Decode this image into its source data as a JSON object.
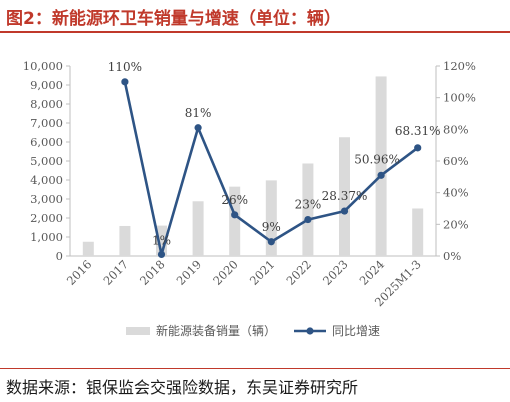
{
  "figure": {
    "title": "图2：新能源环卫车销量与增速（单位：辆）",
    "source": "数据来源：银保监会交强险数据，东吴证券研究所"
  },
  "colors": {
    "bar": "#dadada",
    "line": "#2e5485",
    "axis": "#bfbfbf",
    "tick_text": "#595959",
    "title": "#c0392b"
  },
  "chart_data": {
    "type": "bar+line",
    "categories": [
      "2016",
      "2017",
      "2018",
      "2019",
      "2020",
      "2021",
      "2022",
      "2023",
      "2024",
      "2025M1-3"
    ],
    "series": [
      {
        "name": "新能源装备销量（辆）",
        "type": "bar",
        "axis": "left",
        "values": [
          750,
          1580,
          1600,
          2880,
          3650,
          3980,
          4870,
          6250,
          9450,
          2500
        ]
      },
      {
        "name": "同比增速",
        "type": "line",
        "axis": "right",
        "values": [
          null,
          110,
          1,
          81,
          26,
          9,
          23,
          28.37,
          50.96,
          68.31
        ],
        "labels": [
          "",
          "110%",
          "1%",
          "81%",
          "26%",
          "9%",
          "23%",
          "28.37%",
          "50.96%",
          "68.31%"
        ]
      }
    ],
    "y_left": {
      "min": 0,
      "max": 10000,
      "step": 1000,
      "ticks": [
        "0",
        "1,000",
        "2,000",
        "3,000",
        "4,000",
        "5,000",
        "6,000",
        "7,000",
        "8,000",
        "9,000",
        "10,000"
      ]
    },
    "y_right": {
      "min": 0,
      "max": 120,
      "step": 20,
      "ticks": [
        "0%",
        "20%",
        "40%",
        "60%",
        "80%",
        "100%",
        "120%"
      ]
    },
    "grid": false,
    "legend_position": "bottom"
  }
}
